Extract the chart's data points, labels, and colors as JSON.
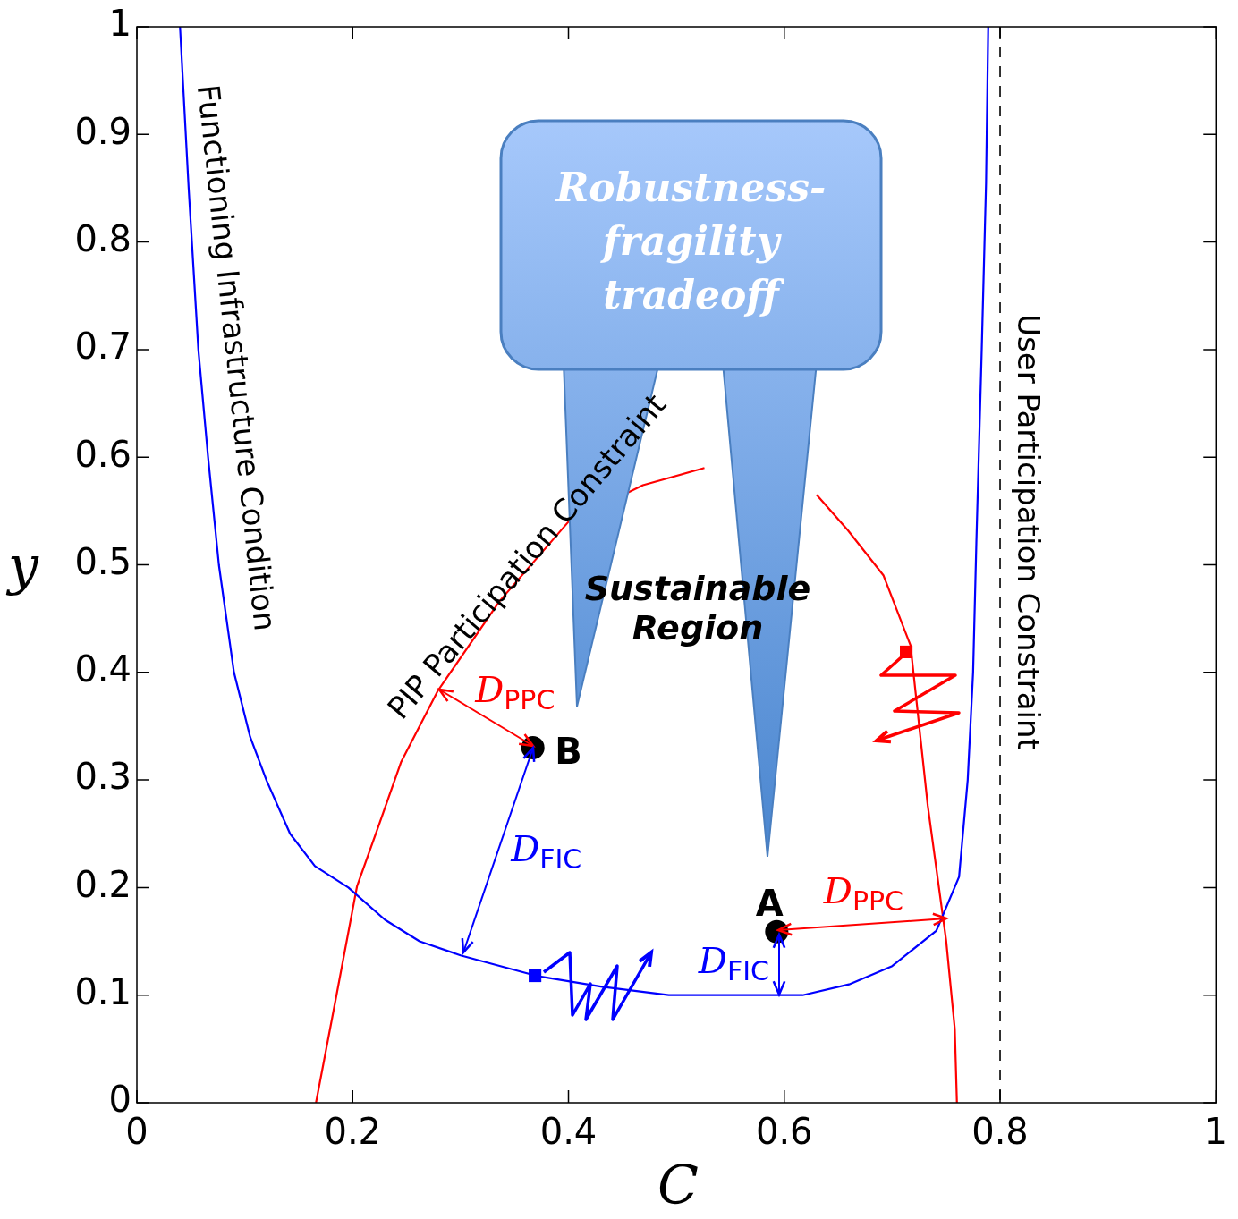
{
  "chart_data": {
    "type": "line",
    "xlabel": "C",
    "ylabel": "y",
    "xlim": [
      0,
      1
    ],
    "ylim": [
      0,
      1
    ],
    "xticks": [
      0,
      0.2,
      0.4,
      0.6,
      0.8,
      1
    ],
    "yticks": [
      0,
      0.1,
      0.2,
      0.3,
      0.4,
      0.5,
      0.6,
      0.7,
      0.8,
      0.9,
      1
    ],
    "marker": "none",
    "line_style": "solid",
    "series": [
      {
        "type": "line",
        "color": "#0000ff",
        "x": [
          0.04,
          0.048,
          0.057,
          0.066,
          0.076,
          0.09,
          0.105,
          0.12,
          0.142,
          0.165,
          0.196,
          0.23,
          0.262,
          0.3,
          0.37,
          0.43,
          0.493,
          0.55,
          0.617,
          0.66,
          0.7,
          0.741,
          0.762,
          0.77,
          0.775,
          0.778,
          0.783,
          0.787,
          0.789
        ],
        "values": [
          1,
          0.85,
          0.7,
          0.6,
          0.5,
          0.4,
          0.34,
          0.3,
          0.25,
          0.22,
          0.2,
          0.17,
          0.15,
          0.137,
          0.118,
          0.108,
          0.1,
          0.1,
          0.1,
          0.11,
          0.127,
          0.16,
          0.21,
          0.3,
          0.4,
          0.52,
          0.7,
          0.855,
          1
        ]
      },
      {
        "type": "line",
        "color": "#ff0000",
        "x": [
          0.166,
          0.185,
          0.204,
          0.225,
          0.245,
          0.279,
          0.336,
          0.4,
          0.469,
          0.526,
          0.56,
          0.6,
          0.63,
          0.659,
          0.692,
          0.717,
          0.733,
          0.75,
          0.758,
          0.76
        ],
        "values": [
          0,
          0.1,
          0.201,
          0.26,
          0.317,
          0.383,
          0.466,
          0.54,
          0.574,
          0.59,
          null,
          null,
          0.565,
          0.532,
          0.49,
          0.425,
          0.276,
          0.151,
          0.069,
          0
        ]
      },
      {
        "type": "scatter",
        "marker": "square",
        "x": [
          0.369,
          0.713
        ],
        "values": [
          0.118,
          0.419
        ],
        "colors": [
          "#0000ff",
          "#ff0000"
        ]
      },
      {
        "type": "scatter",
        "marker": "circle",
        "color": "#000000",
        "x": [
          0.367,
          0.593
        ],
        "values": [
          0.33,
          0.159
        ]
      }
    ],
    "ref_lines": [
      {
        "axis": "x",
        "value": 0.8,
        "color": "#000000",
        "line_style": "dashed"
      }
    ],
    "annotations": [
      "Functioning Infrastructure Condition",
      {
        "text": "PIP Participation Constraint",
        "x": 0.336,
        "y": 0.466
      },
      "Sustainable Region",
      "User Participation Constraint",
      {
        "text": "D$_{PPC}$",
        "x": 0.367,
        "y": 0.33
      },
      {
        "text": "B",
        "x": 0.367,
        "y": 0.33
      },
      {
        "text": "D$_{FIC}$",
        "x": 0.367,
        "y": 0.33
      },
      {
        "text": "A",
        "x": 0.593,
        "y": 0.159
      },
      {
        "text": "D$_{PPC}$",
        "x": 0.593,
        "y": 0.159
      },
      {
        "text": "D$_{FIC}$",
        "x": 0.593,
        "y": 0.159
      },
      "Robustness-fragility tradeoff"
    ]
  }
}
